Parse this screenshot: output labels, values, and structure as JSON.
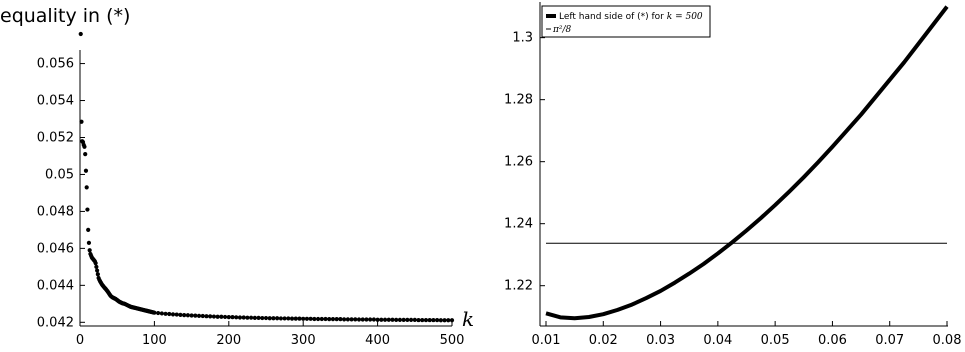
{
  "chart_data": [
    {
      "type": "scatter",
      "title": "equality in (*)",
      "xlabel": "k",
      "ylabel": "",
      "xlim": [
        0,
        500
      ],
      "ylim": [
        0.0418,
        0.0576
      ],
      "x_ticks": [
        "0",
        "100",
        "200",
        "300",
        "400",
        "500"
      ],
      "y_ticks": [
        "0.042",
        "0.044",
        "0.046",
        "0.048",
        "0.05",
        "0.052",
        "0.054",
        "0.056"
      ],
      "color": "#000000",
      "points": [
        [
          1,
          0.0576
        ],
        [
          2,
          0.05285
        ],
        [
          3,
          0.0518
        ],
        [
          4,
          0.05175
        ],
        [
          5,
          0.0516
        ],
        [
          6,
          0.0515
        ],
        [
          7,
          0.0511
        ],
        [
          8,
          0.0502
        ],
        [
          9,
          0.0493
        ],
        [
          10,
          0.0481
        ],
        [
          11,
          0.047
        ],
        [
          12,
          0.0463
        ],
        [
          13,
          0.0459
        ],
        [
          14,
          0.0457
        ],
        [
          15,
          0.0456
        ],
        [
          16,
          0.0455
        ],
        [
          17,
          0.04545
        ],
        [
          18,
          0.0454
        ],
        [
          19,
          0.04535
        ],
        [
          20,
          0.0453
        ],
        [
          21,
          0.0452
        ],
        [
          22,
          0.045
        ],
        [
          23,
          0.0448
        ],
        [
          24,
          0.0446
        ],
        [
          25,
          0.0444
        ],
        [
          26,
          0.0443
        ],
        [
          27,
          0.04422
        ],
        [
          28,
          0.04415
        ],
        [
          29,
          0.04408
        ],
        [
          30,
          0.04402
        ],
        [
          31,
          0.04397
        ],
        [
          32,
          0.04392
        ],
        [
          33,
          0.04387
        ],
        [
          34,
          0.04383
        ],
        [
          35,
          0.04378
        ],
        [
          36,
          0.04373
        ],
        [
          37,
          0.04368
        ],
        [
          38,
          0.04362
        ],
        [
          39,
          0.04356
        ],
        [
          40,
          0.0435
        ],
        [
          41,
          0.04344
        ],
        [
          42,
          0.0434
        ],
        [
          43,
          0.04337
        ],
        [
          44,
          0.04334
        ],
        [
          45,
          0.04332
        ],
        [
          46,
          0.0433
        ],
        [
          47,
          0.04328
        ],
        [
          48,
          0.04326
        ],
        [
          49,
          0.04323
        ],
        [
          50,
          0.0432
        ],
        [
          51,
          0.04317
        ],
        [
          52,
          0.04314
        ],
        [
          53,
          0.04311
        ],
        [
          54,
          0.04309
        ],
        [
          55,
          0.04307
        ],
        [
          56,
          0.04305
        ],
        [
          57,
          0.04303
        ],
        [
          58,
          0.04302
        ],
        [
          59,
          0.04301
        ],
        [
          60,
          0.043
        ],
        [
          61,
          0.04298
        ],
        [
          62,
          0.04296
        ],
        [
          63,
          0.04294
        ],
        [
          64,
          0.04292
        ],
        [
          65,
          0.0429
        ],
        [
          66,
          0.04288
        ],
        [
          67,
          0.04286
        ],
        [
          68,
          0.04284
        ],
        [
          69,
          0.04283
        ],
        [
          70,
          0.04282
        ],
        [
          71,
          0.04281
        ],
        [
          72,
          0.0428
        ],
        [
          73,
          0.04279
        ],
        [
          74,
          0.04278
        ],
        [
          75,
          0.04277
        ],
        [
          76,
          0.04276
        ],
        [
          77,
          0.04275
        ],
        [
          78,
          0.04274
        ],
        [
          79,
          0.04273
        ],
        [
          80,
          0.04272
        ],
        [
          81,
          0.04271
        ],
        [
          82,
          0.0427
        ],
        [
          83,
          0.04269
        ],
        [
          84,
          0.04268
        ],
        [
          85,
          0.04267
        ],
        [
          86,
          0.04266
        ],
        [
          87,
          0.04265
        ],
        [
          88,
          0.04264
        ],
        [
          89,
          0.04263
        ],
        [
          90,
          0.04262
        ],
        [
          91,
          0.04261
        ],
        [
          92,
          0.0426
        ],
        [
          93,
          0.04259
        ],
        [
          94,
          0.04258
        ],
        [
          95,
          0.04257
        ],
        [
          96,
          0.04256
        ],
        [
          97,
          0.04255
        ],
        [
          98,
          0.04254
        ],
        [
          99,
          0.04253
        ],
        [
          100,
          0.04252
        ],
        [
          105,
          0.0425
        ],
        [
          110,
          0.04248
        ],
        [
          115,
          0.04246
        ],
        [
          120,
          0.04245
        ],
        [
          125,
          0.04243
        ],
        [
          130,
          0.04242
        ],
        [
          135,
          0.0424
        ],
        [
          140,
          0.04239
        ],
        [
          145,
          0.04238
        ],
        [
          150,
          0.04237
        ],
        [
          155,
          0.04236
        ],
        [
          160,
          0.04235
        ],
        [
          165,
          0.04234
        ],
        [
          170,
          0.04233
        ],
        [
          175,
          0.04232
        ],
        [
          180,
          0.04231
        ],
        [
          185,
          0.0423
        ],
        [
          190,
          0.0423
        ],
        [
          195,
          0.04229
        ],
        [
          200,
          0.04228
        ],
        [
          205,
          0.04228
        ],
        [
          210,
          0.04227
        ],
        [
          215,
          0.04226
        ],
        [
          220,
          0.04226
        ],
        [
          225,
          0.04225
        ],
        [
          230,
          0.04225
        ],
        [
          235,
          0.04224
        ],
        [
          240,
          0.04224
        ],
        [
          245,
          0.04223
        ],
        [
          250,
          0.04223
        ],
        [
          255,
          0.04222
        ],
        [
          260,
          0.04222
        ],
        [
          265,
          0.04222
        ],
        [
          270,
          0.04221
        ],
        [
          275,
          0.04221
        ],
        [
          280,
          0.04221
        ],
        [
          285,
          0.0422
        ],
        [
          290,
          0.0422
        ],
        [
          295,
          0.0422
        ],
        [
          300,
          0.04219
        ],
        [
          305,
          0.04219
        ],
        [
          310,
          0.04219
        ],
        [
          315,
          0.04218
        ],
        [
          320,
          0.04218
        ],
        [
          325,
          0.04218
        ],
        [
          330,
          0.04218
        ],
        [
          335,
          0.04217
        ],
        [
          340,
          0.04217
        ],
        [
          345,
          0.04217
        ],
        [
          350,
          0.04217
        ],
        [
          355,
          0.04216
        ],
        [
          360,
          0.04216
        ],
        [
          365,
          0.04216
        ],
        [
          370,
          0.04216
        ],
        [
          375,
          0.04215
        ],
        [
          380,
          0.04215
        ],
        [
          385,
          0.04215
        ],
        [
          390,
          0.04215
        ],
        [
          395,
          0.04215
        ],
        [
          400,
          0.04214
        ],
        [
          405,
          0.04214
        ],
        [
          410,
          0.04214
        ],
        [
          415,
          0.04214
        ],
        [
          420,
          0.04214
        ],
        [
          425,
          0.04213
        ],
        [
          430,
          0.04213
        ],
        [
          435,
          0.04213
        ],
        [
          440,
          0.04213
        ],
        [
          445,
          0.04213
        ],
        [
          450,
          0.04213
        ],
        [
          455,
          0.04212
        ],
        [
          460,
          0.04212
        ],
        [
          465,
          0.04212
        ],
        [
          470,
          0.04212
        ],
        [
          475,
          0.04212
        ],
        [
          480,
          0.04212
        ],
        [
          485,
          0.04211
        ],
        [
          490,
          0.04211
        ],
        [
          495,
          0.04211
        ],
        [
          500,
          0.04211
        ]
      ]
    },
    {
      "type": "line",
      "title": "",
      "xlabel": "",
      "ylabel": "",
      "xlim": [
        0.01,
        0.08
      ],
      "ylim": [
        1.207,
        1.3115
      ],
      "x_ticks": [
        "0.01",
        "0.02",
        "0.03",
        "0.04",
        "0.05",
        "0.06",
        "0.07",
        "0.08"
      ],
      "y_ticks": [
        "1.22",
        "1.24",
        "1.26",
        "1.28",
        "1.3"
      ],
      "legend": {
        "position": "top-left"
      },
      "series": [
        {
          "name": "Left hand side of (*) for k = 500",
          "name_text": "Left hand side of (*) for ",
          "name_math": "k = 500",
          "color": "#000000",
          "x": [
            0.01,
            0.0125,
            0.015,
            0.0175,
            0.02,
            0.0225,
            0.025,
            0.0275,
            0.03,
            0.0325,
            0.035,
            0.0375,
            0.04,
            0.0425,
            0.045,
            0.0475,
            0.05,
            0.0525,
            0.055,
            0.0575,
            0.06,
            0.0625,
            0.065,
            0.0675,
            0.07,
            0.0725,
            0.075,
            0.0775,
            0.08
          ],
          "y": [
            1.2111,
            1.2098,
            1.2095,
            1.2099,
            1.2108,
            1.2122,
            1.2139,
            1.216,
            1.2183,
            1.221,
            1.2239,
            1.227,
            1.2304,
            1.234,
            1.2378,
            1.2418,
            1.246,
            1.2504,
            1.255,
            1.2598,
            1.2648,
            1.27,
            1.2752,
            1.2808,
            1.2864,
            1.292,
            1.298,
            1.304,
            1.31
          ]
        },
        {
          "name": "π²/8",
          "name_text": "",
          "name_math": "π²/8",
          "color": "#000000",
          "x": [
            0.01,
            0.08
          ],
          "y": [
            1.2337,
            1.2337
          ]
        }
      ]
    }
  ]
}
